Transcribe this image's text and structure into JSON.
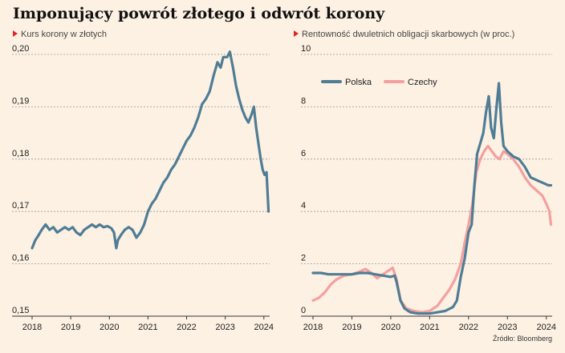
{
  "title": "Imponujący powrót złotego i odwrót korony",
  "source": "Źródło: Bloomberg",
  "chart_data": [
    {
      "type": "line",
      "subtitle": "Kurs korony w złotych",
      "y_tick_labels": [
        "0,15",
        "0,16",
        "0,17",
        "0,18",
        "0,19",
        "0,20"
      ],
      "x_tick_labels": [
        "2018",
        "2019",
        "2020",
        "2021",
        "2022",
        "2023",
        "2024"
      ],
      "ylim": [
        0.15,
        0.2
      ],
      "xlim": [
        2018,
        2024.15
      ],
      "grid": true,
      "series": [
        {
          "color": "#4f7d95",
          "points": [
            [
              2018.0,
              0.163
            ],
            [
              2018.08,
              0.1645
            ],
            [
              2018.17,
              0.1655
            ],
            [
              2018.25,
              0.1665
            ],
            [
              2018.35,
              0.1675
            ],
            [
              2018.45,
              0.1665
            ],
            [
              2018.55,
              0.167
            ],
            [
              2018.65,
              0.166
            ],
            [
              2018.75,
              0.1665
            ],
            [
              2018.85,
              0.167
            ],
            [
              2018.95,
              0.1665
            ],
            [
              2019.05,
              0.167
            ],
            [
              2019.15,
              0.166
            ],
            [
              2019.25,
              0.1655
            ],
            [
              2019.35,
              0.1665
            ],
            [
              2019.45,
              0.167
            ],
            [
              2019.55,
              0.1675
            ],
            [
              2019.65,
              0.167
            ],
            [
              2019.75,
              0.1675
            ],
            [
              2019.85,
              0.167
            ],
            [
              2019.95,
              0.1672
            ],
            [
              2020.05,
              0.1668
            ],
            [
              2020.12,
              0.166
            ],
            [
              2020.18,
              0.163
            ],
            [
              2020.22,
              0.1645
            ],
            [
              2020.3,
              0.1655
            ],
            [
              2020.4,
              0.1665
            ],
            [
              2020.5,
              0.167
            ],
            [
              2020.6,
              0.1665
            ],
            [
              2020.7,
              0.165
            ],
            [
              2020.8,
              0.166
            ],
            [
              2020.9,
              0.1675
            ],
            [
              2021.0,
              0.17
            ],
            [
              2021.1,
              0.1715
            ],
            [
              2021.2,
              0.1725
            ],
            [
              2021.3,
              0.174
            ],
            [
              2021.4,
              0.1755
            ],
            [
              2021.5,
              0.1765
            ],
            [
              2021.6,
              0.178
            ],
            [
              2021.7,
              0.179
            ],
            [
              2021.8,
              0.1805
            ],
            [
              2021.9,
              0.182
            ],
            [
              2022.0,
              0.1835
            ],
            [
              2022.1,
              0.1845
            ],
            [
              2022.2,
              0.186
            ],
            [
              2022.3,
              0.188
            ],
            [
              2022.4,
              0.1905
            ],
            [
              2022.5,
              0.1915
            ],
            [
              2022.6,
              0.193
            ],
            [
              2022.7,
              0.196
            ],
            [
              2022.8,
              0.1985
            ],
            [
              2022.88,
              0.1975
            ],
            [
              2022.95,
              0.1995
            ],
            [
              2023.05,
              0.1995
            ],
            [
              2023.12,
              0.2005
            ],
            [
              2023.2,
              0.1975
            ],
            [
              2023.28,
              0.194
            ],
            [
              2023.36,
              0.1915
            ],
            [
              2023.44,
              0.1895
            ],
            [
              2023.52,
              0.188
            ],
            [
              2023.6,
              0.187
            ],
            [
              2023.68,
              0.1885
            ],
            [
              2023.74,
              0.19
            ],
            [
              2023.8,
              0.186
            ],
            [
              2023.86,
              0.183
            ],
            [
              2023.92,
              0.18
            ],
            [
              2023.97,
              0.178
            ],
            [
              2024.02,
              0.177
            ],
            [
              2024.07,
              0.1775
            ],
            [
              2024.12,
              0.17
            ]
          ]
        }
      ]
    },
    {
      "type": "line",
      "subtitle": "Rentowność dwuletnich obligacji skarbowych (w proc.)",
      "y_tick_labels": [
        "0",
        "2",
        "4",
        "6",
        "8",
        "10"
      ],
      "x_tick_labels": [
        "2018",
        "2019",
        "2020",
        "2021",
        "2022",
        "2023",
        "2024"
      ],
      "ylim": [
        0,
        10
      ],
      "xlim": [
        2018,
        2024.15
      ],
      "grid": true,
      "legend": "top-left",
      "series": [
        {
          "name": "Polska",
          "color": "#4f7d95",
          "points": [
            [
              2018.0,
              1.65
            ],
            [
              2018.2,
              1.65
            ],
            [
              2018.4,
              1.6
            ],
            [
              2018.6,
              1.6
            ],
            [
              2018.8,
              1.6
            ],
            [
              2019.0,
              1.6
            ],
            [
              2019.2,
              1.65
            ],
            [
              2019.4,
              1.65
            ],
            [
              2019.6,
              1.6
            ],
            [
              2019.8,
              1.55
            ],
            [
              2020.0,
              1.5
            ],
            [
              2020.1,
              1.55
            ],
            [
              2020.15,
              1.3
            ],
            [
              2020.25,
              0.6
            ],
            [
              2020.35,
              0.3
            ],
            [
              2020.5,
              0.15
            ],
            [
              2020.7,
              0.1
            ],
            [
              2020.9,
              0.1
            ],
            [
              2021.0,
              0.1
            ],
            [
              2021.2,
              0.15
            ],
            [
              2021.4,
              0.2
            ],
            [
              2021.6,
              0.35
            ],
            [
              2021.7,
              0.6
            ],
            [
              2021.8,
              1.5
            ],
            [
              2021.9,
              2.2
            ],
            [
              2022.0,
              3.2
            ],
            [
              2022.08,
              3.5
            ],
            [
              2022.15,
              5.0
            ],
            [
              2022.22,
              6.2
            ],
            [
              2022.3,
              6.6
            ],
            [
              2022.38,
              7.0
            ],
            [
              2022.45,
              7.8
            ],
            [
              2022.52,
              8.4
            ],
            [
              2022.58,
              7.2
            ],
            [
              2022.65,
              6.8
            ],
            [
              2022.72,
              8.0
            ],
            [
              2022.78,
              8.9
            ],
            [
              2022.84,
              7.4
            ],
            [
              2022.9,
              6.5
            ],
            [
              2023.0,
              6.3
            ],
            [
              2023.15,
              6.1
            ],
            [
              2023.3,
              6.0
            ],
            [
              2023.45,
              5.7
            ],
            [
              2023.6,
              5.3
            ],
            [
              2023.75,
              5.2
            ],
            [
              2023.9,
              5.1
            ],
            [
              2024.05,
              5.0
            ],
            [
              2024.12,
              5.0
            ]
          ]
        },
        {
          "name": "Czechy",
          "color": "#f4a0a0",
          "points": [
            [
              2018.0,
              0.6
            ],
            [
              2018.15,
              0.7
            ],
            [
              2018.3,
              0.9
            ],
            [
              2018.45,
              1.2
            ],
            [
              2018.6,
              1.4
            ],
            [
              2018.8,
              1.55
            ],
            [
              2019.0,
              1.6
            ],
            [
              2019.2,
              1.7
            ],
            [
              2019.35,
              1.8
            ],
            [
              2019.5,
              1.65
            ],
            [
              2019.65,
              1.45
            ],
            [
              2019.8,
              1.6
            ],
            [
              2019.95,
              1.75
            ],
            [
              2020.05,
              1.85
            ],
            [
              2020.15,
              1.4
            ],
            [
              2020.25,
              0.6
            ],
            [
              2020.4,
              0.3
            ],
            [
              2020.6,
              0.2
            ],
            [
              2020.8,
              0.15
            ],
            [
              2021.0,
              0.2
            ],
            [
              2021.2,
              0.4
            ],
            [
              2021.35,
              0.7
            ],
            [
              2021.5,
              1.0
            ],
            [
              2021.65,
              1.4
            ],
            [
              2021.8,
              2.0
            ],
            [
              2021.9,
              2.8
            ],
            [
              2022.0,
              3.5
            ],
            [
              2022.1,
              4.3
            ],
            [
              2022.2,
              5.5
            ],
            [
              2022.3,
              6.0
            ],
            [
              2022.4,
              6.3
            ],
            [
              2022.5,
              6.5
            ],
            [
              2022.6,
              6.3
            ],
            [
              2022.7,
              6.1
            ],
            [
              2022.8,
              6.0
            ],
            [
              2022.9,
              6.3
            ],
            [
              2023.0,
              6.2
            ],
            [
              2023.15,
              6.0
            ],
            [
              2023.3,
              5.7
            ],
            [
              2023.45,
              5.3
            ],
            [
              2023.6,
              5.0
            ],
            [
              2023.75,
              4.8
            ],
            [
              2023.9,
              4.6
            ],
            [
              2024.0,
              4.3
            ],
            [
              2024.08,
              4.0
            ],
            [
              2024.12,
              3.5
            ]
          ]
        }
      ]
    }
  ]
}
